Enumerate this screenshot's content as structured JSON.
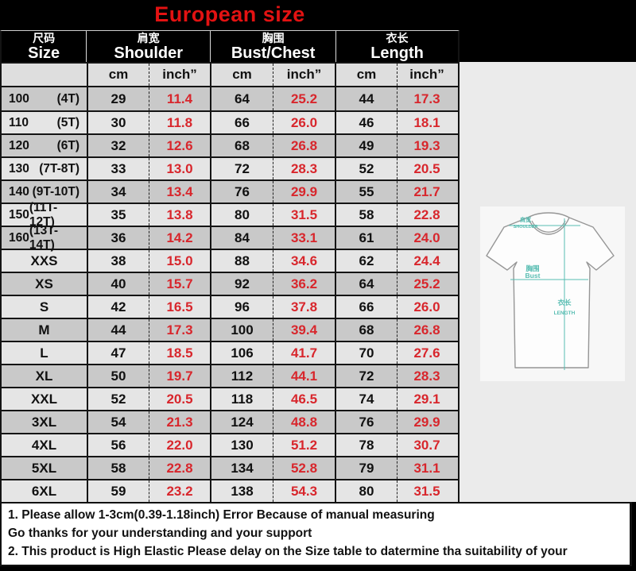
{
  "title": "European size",
  "table": {
    "header": [
      {
        "zh": "尺码",
        "en": "Size"
      },
      {
        "zh": "肩宽",
        "en": "Shoulder"
      },
      {
        "zh": "胸围",
        "en": "Bust/Chest"
      },
      {
        "zh": "衣长",
        "en": "Length"
      }
    ],
    "units": {
      "cm": "cm",
      "inch": "inch”"
    },
    "rows": [
      {
        "size": "100",
        "age": "(4T)",
        "values": [
          "29",
          "11.4",
          "64",
          "25.2",
          "44",
          "17.3"
        ]
      },
      {
        "size": "110",
        "age": "(5T)",
        "values": [
          "30",
          "11.8",
          "66",
          "26.0",
          "46",
          "18.1"
        ]
      },
      {
        "size": "120",
        "age": "(6T)",
        "values": [
          "32",
          "12.6",
          "68",
          "26.8",
          "49",
          "19.3"
        ]
      },
      {
        "size": "130",
        "age": "(7T-8T)",
        "values": [
          "33",
          "13.0",
          "72",
          "28.3",
          "52",
          "20.5"
        ]
      },
      {
        "size": "140",
        "age": "(9T-10T)",
        "values": [
          "34",
          "13.4",
          "76",
          "29.9",
          "55",
          "21.7"
        ]
      },
      {
        "size": "150",
        "age": "(11T-12T)",
        "values": [
          "35",
          "13.8",
          "80",
          "31.5",
          "58",
          "22.8"
        ]
      },
      {
        "size": "160",
        "age": "(13T-14T)",
        "values": [
          "36",
          "14.2",
          "84",
          "33.1",
          "61",
          "24.0"
        ]
      },
      {
        "size": "XXS",
        "age": "",
        "values": [
          "38",
          "15.0",
          "88",
          "34.6",
          "62",
          "24.4"
        ]
      },
      {
        "size": "XS",
        "age": "",
        "values": [
          "40",
          "15.7",
          "92",
          "36.2",
          "64",
          "25.2"
        ]
      },
      {
        "size": "S",
        "age": "",
        "values": [
          "42",
          "16.5",
          "96",
          "37.8",
          "66",
          "26.0"
        ]
      },
      {
        "size": "M",
        "age": "",
        "values": [
          "44",
          "17.3",
          "100",
          "39.4",
          "68",
          "26.8"
        ]
      },
      {
        "size": "L",
        "age": "",
        "values": [
          "47",
          "18.5",
          "106",
          "41.7",
          "70",
          "27.6"
        ]
      },
      {
        "size": "XL",
        "age": "",
        "values": [
          "50",
          "19.7",
          "112",
          "44.1",
          "72",
          "28.3"
        ]
      },
      {
        "size": "XXL",
        "age": "",
        "values": [
          "52",
          "20.5",
          "118",
          "46.5",
          "74",
          "29.1"
        ]
      },
      {
        "size": "3XL",
        "age": "",
        "values": [
          "54",
          "21.3",
          "124",
          "48.8",
          "76",
          "29.9"
        ]
      },
      {
        "size": "4XL",
        "age": "",
        "values": [
          "56",
          "22.0",
          "130",
          "51.2",
          "78",
          "30.7"
        ]
      },
      {
        "size": "5XL",
        "age": "",
        "values": [
          "58",
          "22.8",
          "134",
          "52.8",
          "79",
          "31.1"
        ]
      },
      {
        "size": "6XL",
        "age": "",
        "values": [
          "59",
          "23.2",
          "138",
          "54.3",
          "80",
          "31.5"
        ]
      }
    ]
  },
  "diagram": {
    "shoulder_zh": "肩宽",
    "shoulder_en": "SHOULDER",
    "bust_zh": "胸围",
    "bust_en": "Bust",
    "length_zh": "衣长",
    "length_en": "LENGTH"
  },
  "notes": [
    "1. Please allow 1-3cm(0.39-1.18inch) Error Because of manual measuring",
    "Go thanks for your understanding and your support",
    "2. This product is High Elastic  Please delay on the Size table to datermine tha suitability of your"
  ],
  "colors": {
    "title_red": "#e31212",
    "value_red": "#d8262c",
    "teal": "#57bdb2",
    "row_dark": "#c9c9c9",
    "row_light": "#e5e5e5"
  }
}
